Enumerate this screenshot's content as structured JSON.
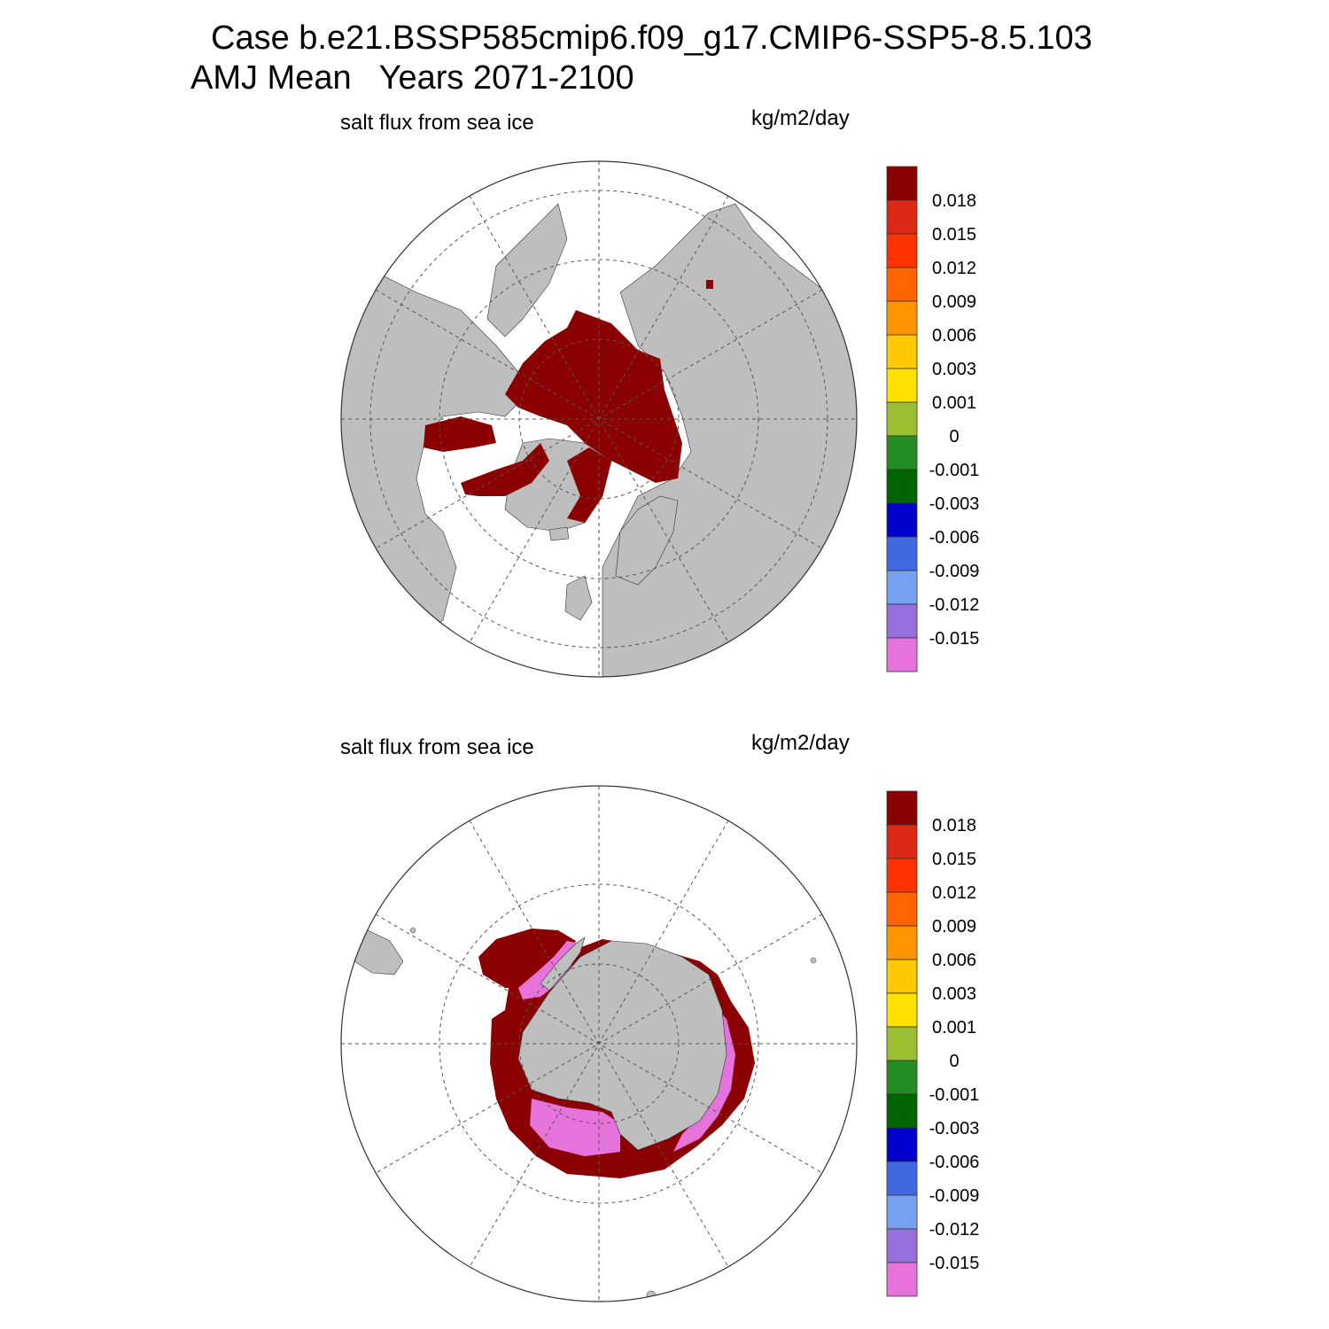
{
  "title_line1": "Case b.e21.BSSP585cmip6.f09_g17.CMIP6-SSP5-8.5.103",
  "title_line2": "AMJ Mean   Years 2071-2100",
  "colors": {
    "land": "#bebebe",
    "ocean": "#ffffff",
    "grid": "#555555",
    "ice_high": "#8b0000",
    "ice_low": "#e673dc"
  },
  "colorbar": {
    "colors": [
      "#e673dc",
      "#9670dc",
      "#78a0f0",
      "#4169e1",
      "#0000cd",
      "#006400",
      "#228b22",
      "#9ac032",
      "#ffe100",
      "#ffc800",
      "#ff9600",
      "#ff6400",
      "#ff3200",
      "#dc2814",
      "#8b0000"
    ],
    "labels": [
      "-0.015",
      "-0.012",
      "-0.009",
      "-0.006",
      "-0.003",
      "-0.001",
      "0",
      "0.001",
      "0.003",
      "0.006",
      "0.009",
      "0.012",
      "0.015",
      "0.018"
    ]
  },
  "panels": [
    {
      "id": "north",
      "hemisphere": "Northern Hemisphere polar stereographic",
      "variable": "salt flux from sea ice",
      "units": "kg/m2/day"
    },
    {
      "id": "south",
      "hemisphere": "Southern Hemisphere polar stereographic",
      "variable": "salt flux from sea ice",
      "units": "kg/m2/day"
    }
  ]
}
